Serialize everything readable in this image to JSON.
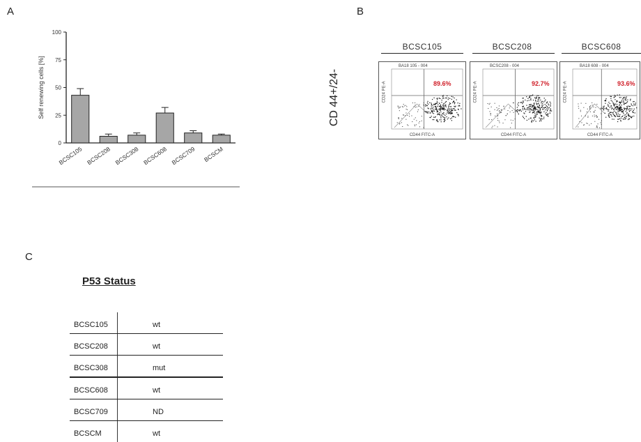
{
  "panels": {
    "a": "A",
    "b": "B",
    "c": "C"
  },
  "chart_data": {
    "type": "bar",
    "categories": [
      "BCSC105",
      "BCSC208",
      "BCSC308",
      "BCSC608",
      "BCSC709",
      "BCSCM"
    ],
    "values": [
      43,
      6,
      7,
      27,
      9,
      7
    ],
    "errors": [
      6,
      2,
      2,
      5,
      2,
      1
    ],
    "ylabel": "Self renewing cells [%]",
    "xlabel": "",
    "ylim": [
      0,
      100
    ],
    "yticks": [
      0,
      25,
      50,
      75,
      100
    ],
    "bar_color": "#a6a6a6",
    "grid": false
  },
  "flow": {
    "side_label": "CD 44+/24-",
    "plots": [
      {
        "title": "BCSC105",
        "percent": "89.6%",
        "gate_label": "BA18 105 - 004",
        "xlabel": "CD44 FITC-A",
        "ylabel": "CD24 PE-A"
      },
      {
        "title": "BCSC208",
        "percent": "92.7%",
        "gate_label": "BCSC208 - 004",
        "xlabel": "CD44 FITC-A",
        "ylabel": "CD24 PE-A"
      },
      {
        "title": "BCSC608",
        "percent": "93.6%",
        "gate_label": "BA18 608 - 004",
        "xlabel": "CD44 FITC-A",
        "ylabel": "CD24 PE-A"
      }
    ],
    "percent_color": "#d0202a"
  },
  "p53": {
    "title": "P53 Status",
    "rows": [
      {
        "name": "BCSC105",
        "status": "wt"
      },
      {
        "name": "BCSC208",
        "status": "wt"
      },
      {
        "name": "BCSC308",
        "status": "mut"
      },
      {
        "name": "BCSC608",
        "status": "wt"
      },
      {
        "name": "BCSC709",
        "status": "ND"
      },
      {
        "name": "BCSCM",
        "status": "wt"
      }
    ]
  }
}
